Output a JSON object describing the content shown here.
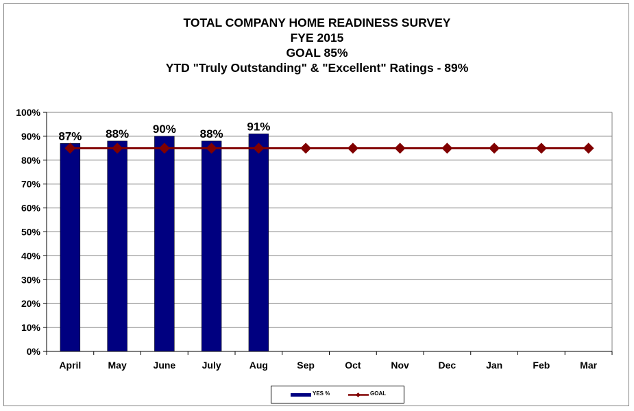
{
  "chart_data": {
    "type": "bar",
    "title": "TOTAL COMPANY HOME READINESS SURVEY",
    "subtitles": [
      "FYE 2015",
      "GOAL 85%",
      "YTD \"Truly Outstanding\" & \"Excellent\" Ratings - 89%"
    ],
    "categories": [
      "April",
      "May",
      "June",
      "July",
      "Aug",
      "Sep",
      "Oct",
      "Nov",
      "Dec",
      "Jan",
      "Feb",
      "Mar"
    ],
    "series": [
      {
        "name": "YES %",
        "kind": "bar",
        "color": "#000080",
        "values": [
          87,
          88,
          90,
          88,
          91,
          null,
          null,
          null,
          null,
          null,
          null,
          null
        ],
        "labels": [
          "87%",
          "88%",
          "90%",
          "88%",
          "91%"
        ]
      },
      {
        "name": "GOAL",
        "kind": "line",
        "color": "#800000",
        "values": [
          85,
          85,
          85,
          85,
          85,
          85,
          85,
          85,
          85,
          85,
          85,
          85
        ]
      }
    ],
    "ylim": [
      0,
      100
    ],
    "yticks": [
      "0%",
      "10%",
      "20%",
      "30%",
      "40%",
      "50%",
      "60%",
      "70%",
      "80%",
      "90%",
      "100%"
    ],
    "xlabel": "",
    "ylabel": "",
    "grid": true,
    "legend_position": "bottom"
  }
}
